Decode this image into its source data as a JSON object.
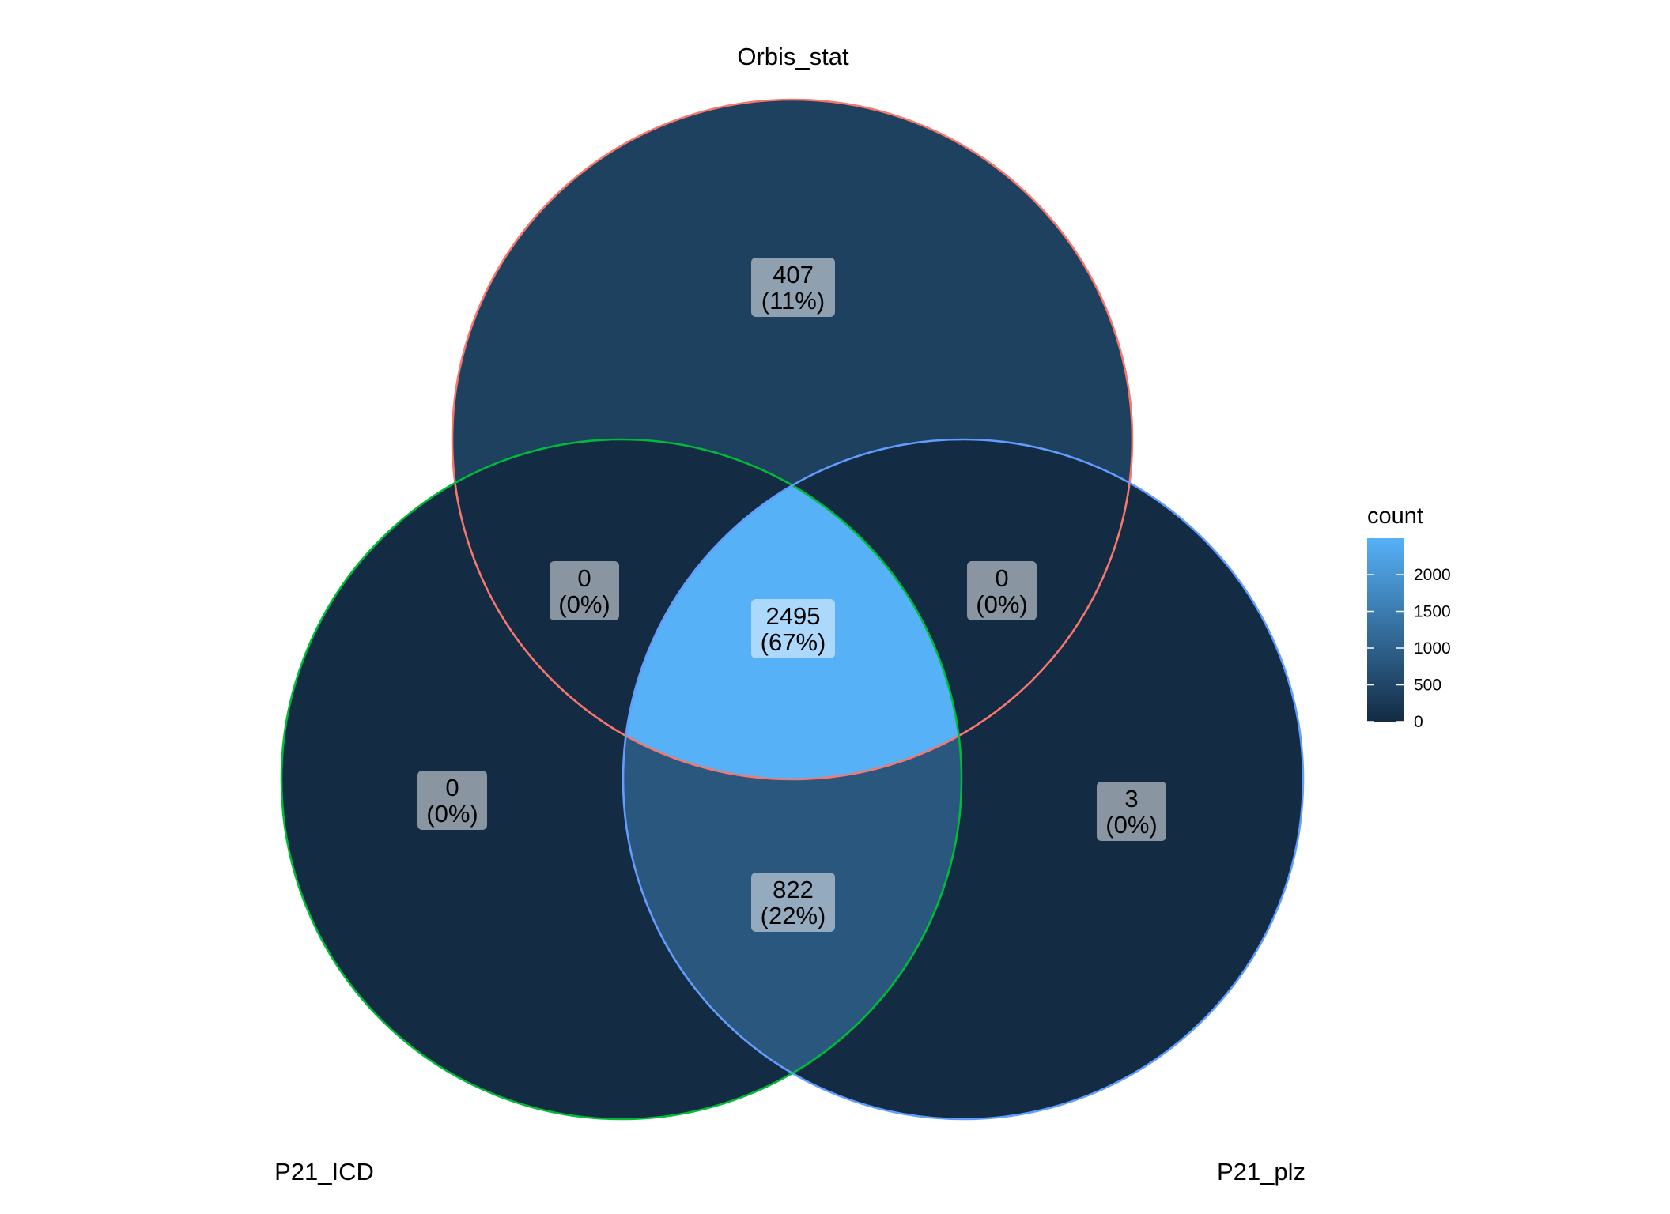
{
  "chart_data": {
    "type": "venn",
    "sets": [
      {
        "id": "top",
        "label": "Orbis_stat",
        "color": "#F8766D"
      },
      {
        "id": "left",
        "label": "P21_ICD",
        "color": "#00BA38"
      },
      {
        "id": "right",
        "label": "P21_plz",
        "color": "#619CFF"
      }
    ],
    "regions": [
      {
        "id": "orbis-only",
        "sets": [
          "Orbis_stat"
        ],
        "count": "407",
        "percent": "(11%)",
        "value": 407
      },
      {
        "id": "orbis-icd",
        "sets": [
          "Orbis_stat",
          "P21_ICD"
        ],
        "count": "0",
        "percent": "(0%)",
        "value": 0
      },
      {
        "id": "orbis-plz",
        "sets": [
          "Orbis_stat",
          "P21_plz"
        ],
        "count": "0",
        "percent": "(0%)",
        "value": 0
      },
      {
        "id": "all-three",
        "sets": [
          "Orbis_stat",
          "P21_ICD",
          "P21_plz"
        ],
        "count": "2495",
        "percent": "(67%)",
        "value": 2495
      },
      {
        "id": "icd-only",
        "sets": [
          "P21_ICD"
        ],
        "count": "0",
        "percent": "(0%)",
        "value": 0
      },
      {
        "id": "plz-only",
        "sets": [
          "P21_plz"
        ],
        "count": "3",
        "percent": "(0%)",
        "value": 3
      },
      {
        "id": "icd-plz",
        "sets": [
          "P21_ICD",
          "P21_plz"
        ],
        "count": "822",
        "percent": "(22%)",
        "value": 822
      }
    ],
    "legend": {
      "title": "count",
      "ticks": [
        "0",
        "500",
        "1000",
        "1500",
        "2000"
      ],
      "tick_values": [
        0,
        500,
        1000,
        1500,
        2000
      ],
      "range": [
        0,
        2495
      ],
      "low_color": "#132B43",
      "high_color": "#56B1F7",
      "placement": "right"
    }
  }
}
